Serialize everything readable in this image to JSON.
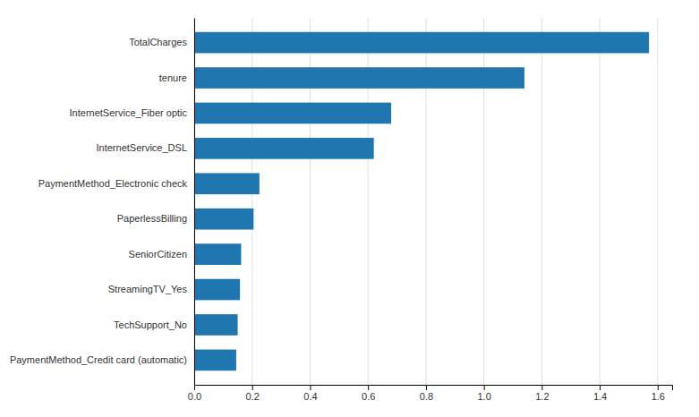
{
  "chart_data": {
    "type": "bar",
    "orientation": "horizontal",
    "categories": [
      "TotalCharges",
      "tenure",
      "InternetService_Fiber optic",
      "InternetService_DSL",
      "PaymentMethod_Electronic check",
      "PaperlessBilling",
      "SeniorCitizen",
      "StreamingTV_Yes",
      "TechSupport_No",
      "PaymentMethod_Credit card (automatic)"
    ],
    "values": [
      1.57,
      1.14,
      0.68,
      0.62,
      0.225,
      0.205,
      0.162,
      0.158,
      0.15,
      0.145
    ],
    "color": "#2076ae",
    "xlim": [
      0.0,
      1.65
    ],
    "xticks": [
      {
        "value": 0.0,
        "label": "0.0"
      },
      0.2,
      0.4,
      0.6,
      0.8,
      {
        "value": 1.0,
        "label": "1.0"
      },
      1.2,
      1.4,
      1.6
    ],
    "grid": true
  }
}
